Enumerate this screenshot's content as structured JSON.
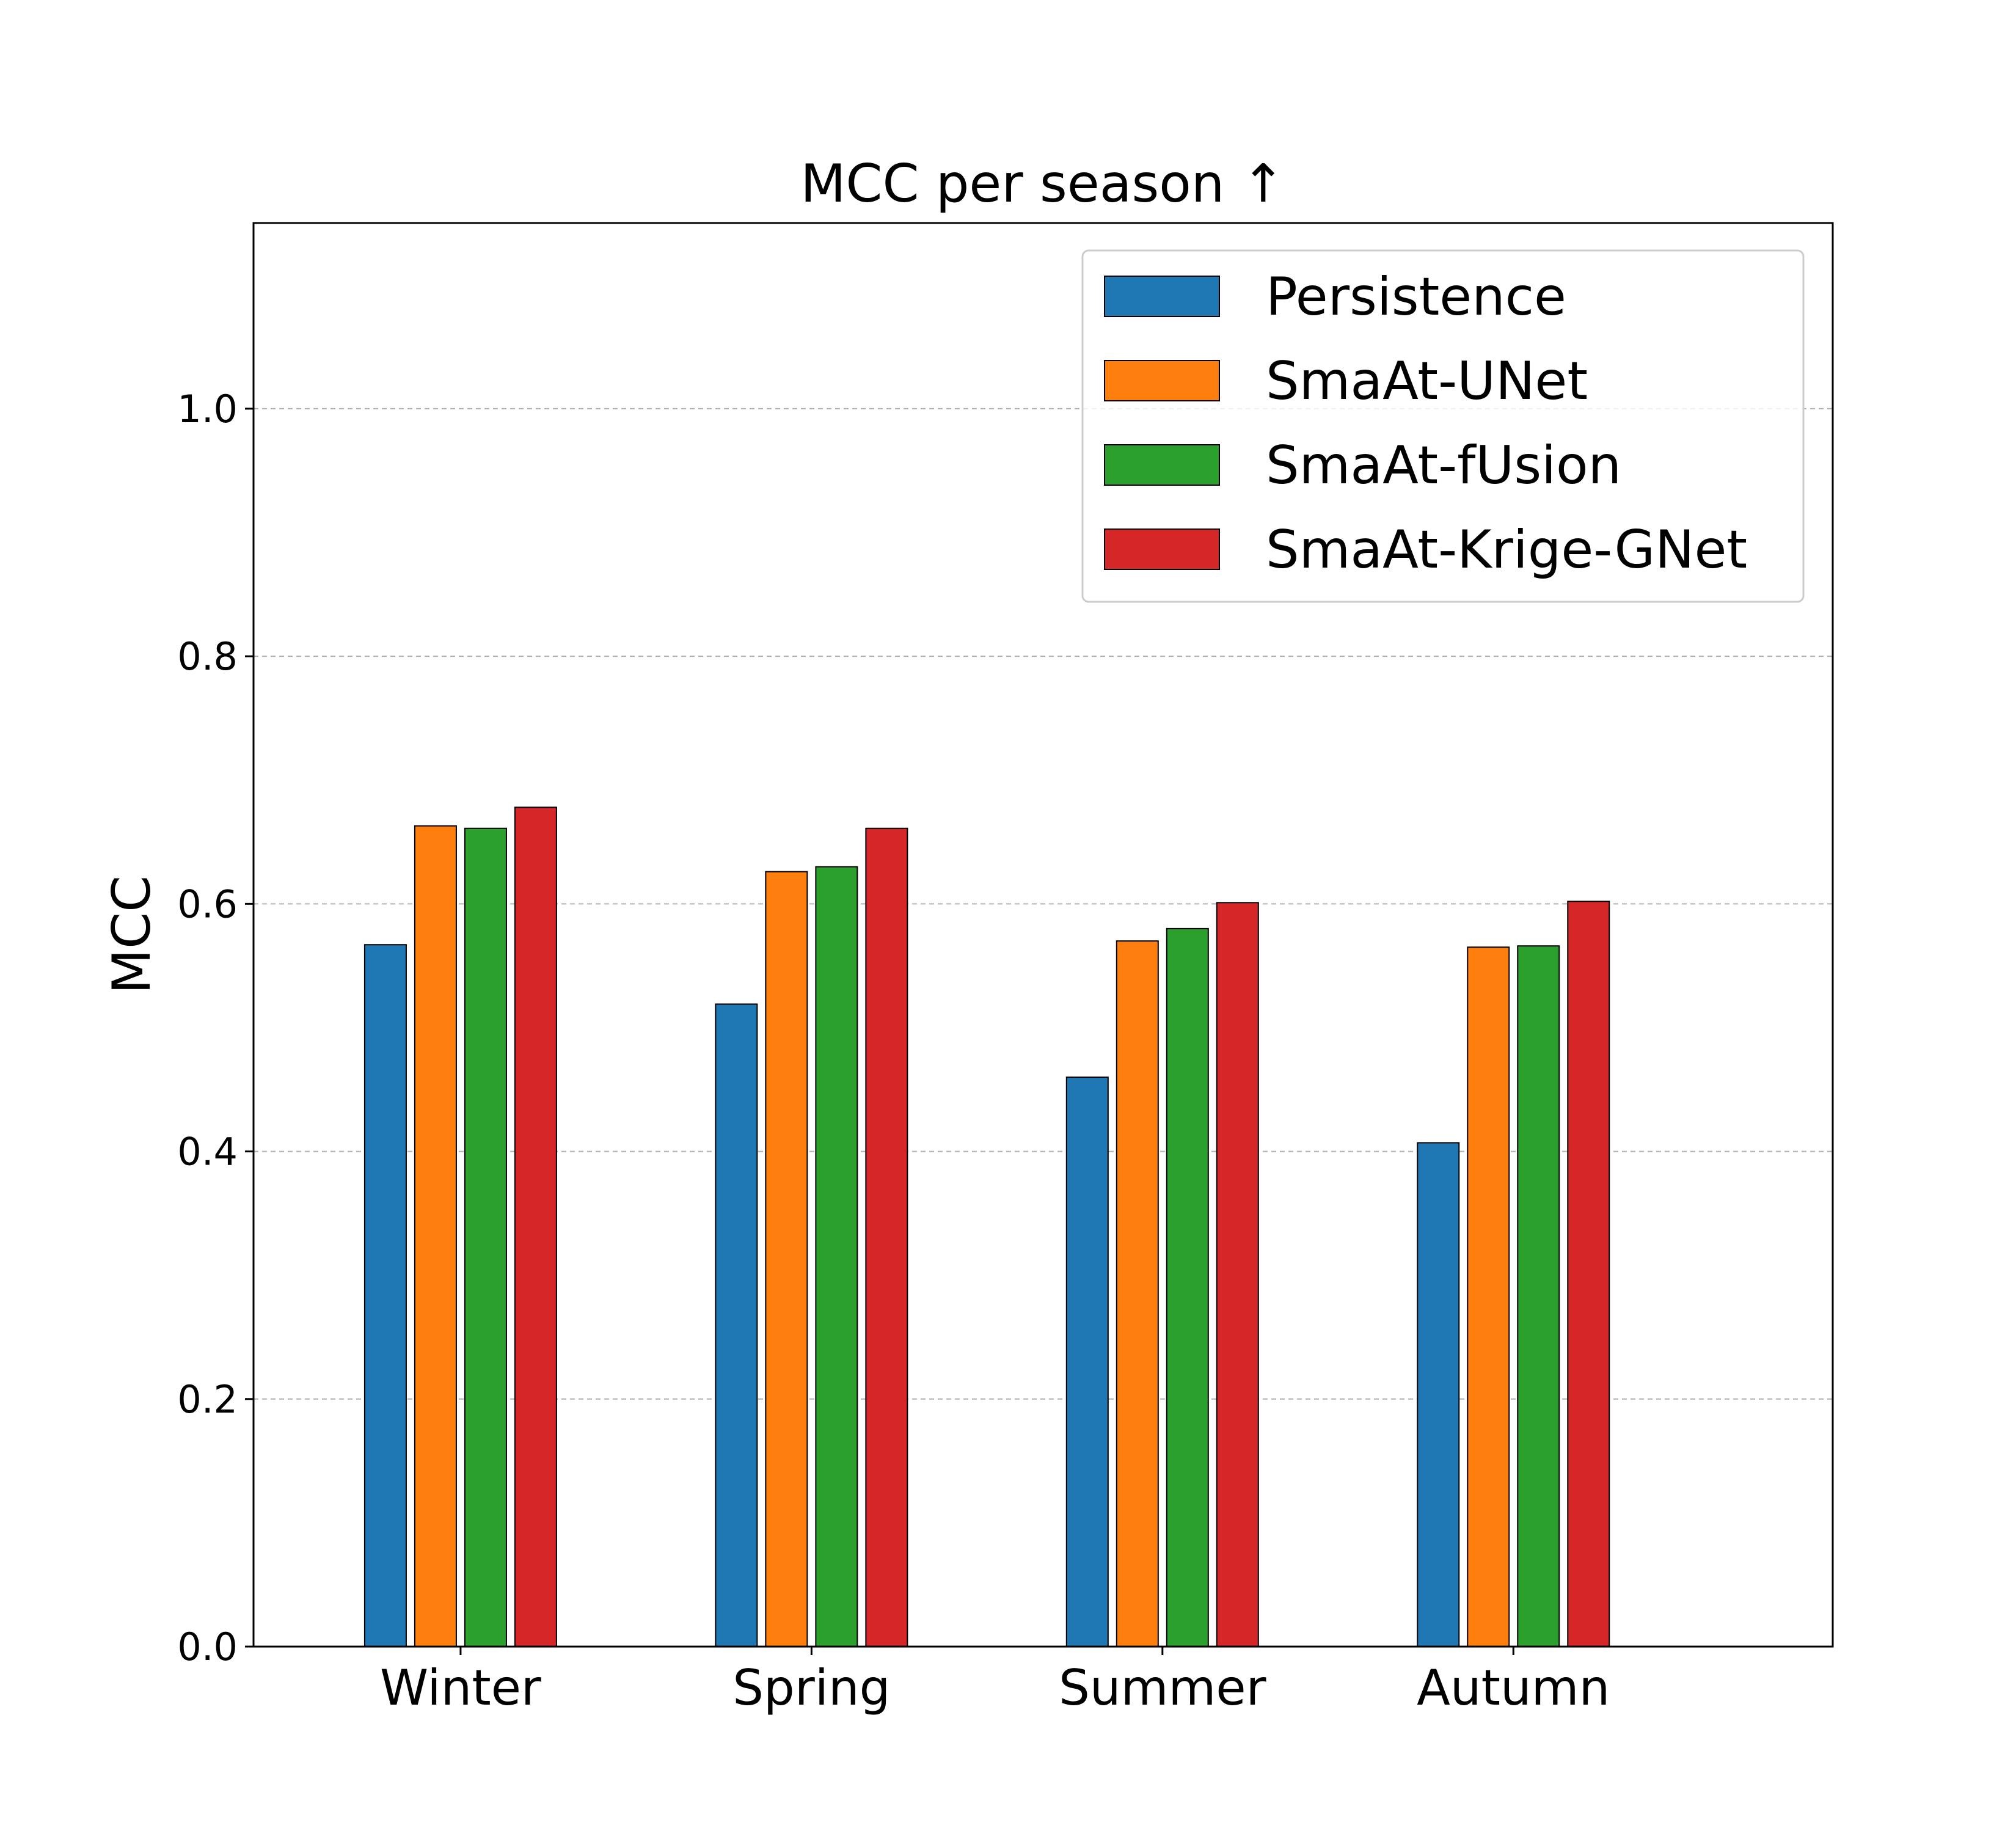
{
  "chart_data": {
    "type": "bar",
    "title": "MCC per season ↑",
    "xlabel": "",
    "ylabel": "MCC",
    "categories": [
      "Winter",
      "Spring",
      "Summer",
      "Autumn"
    ],
    "series": [
      {
        "name": "Persistence",
        "color": "#1f77b4",
        "values": [
          0.567,
          0.519,
          0.46,
          0.407
        ]
      },
      {
        "name": "SmaAt-UNet",
        "color": "#ff7f0e",
        "values": [
          0.663,
          0.626,
          0.57,
          0.565
        ]
      },
      {
        "name": "SmaAt-fUsion",
        "color": "#2ca02c",
        "values": [
          0.661,
          0.63,
          0.58,
          0.566
        ]
      },
      {
        "name": "SmaAt-Krige-GNet",
        "color": "#d62728",
        "values": [
          0.678,
          0.661,
          0.601,
          0.602
        ]
      }
    ],
    "ylim": [
      0,
      1.15
    ],
    "yticks": [
      "0.0",
      "0.2",
      "0.4",
      "0.6",
      "0.8",
      "1.0"
    ],
    "grid": "y-dashed",
    "legend_position": "top-right"
  }
}
